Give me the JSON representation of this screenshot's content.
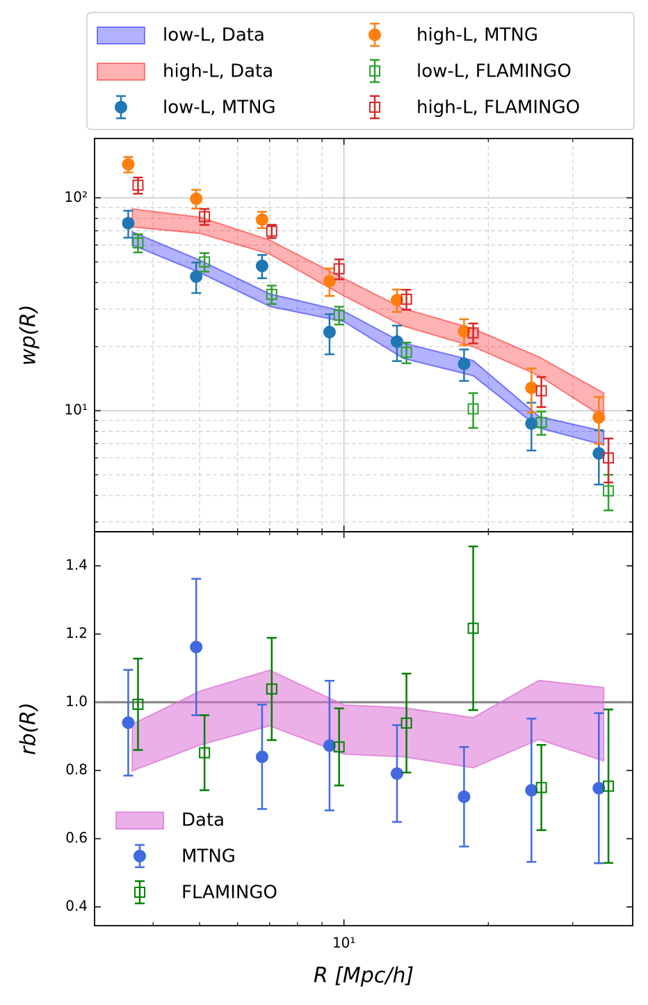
{
  "chart_data": [
    {
      "type": "errorbar",
      "ylabel": "wp(R)",
      "xscale": "log",
      "yscale": "log",
      "xlim": [
        3.02,
        40
      ],
      "ylim": [
        2.7,
        190
      ],
      "xticks": [
        10
      ],
      "xminorticks": [
        4,
        5,
        6,
        7,
        8,
        9,
        20,
        30
      ],
      "yticks": [
        {
          "value": 10,
          "label": "10¹"
        },
        {
          "value": 100,
          "label": "10²"
        }
      ],
      "yminorticks": [
        3,
        4,
        5,
        6,
        7,
        8,
        9,
        20,
        30,
        40,
        50,
        60,
        70,
        80,
        90
      ],
      "grid": true,
      "minor_grid": true,
      "legend": {
        "loc": "upper center outside",
        "ncol": 2,
        "frame": true
      },
      "series": [
        {
          "name": "low-L, Data",
          "kind": "band",
          "color": "#0000ff",
          "alpha": 0.3,
          "x": [
            3.62,
            5.02,
            7.0,
            10.0,
            13.3,
            18.6,
            25.5,
            34.8
          ],
          "lower": [
            60,
            44.4,
            30.9,
            26.2,
            17.6,
            14.6,
            8.3,
            6.9
          ],
          "upper": [
            69.2,
            50.8,
            35.4,
            29.3,
            20.8,
            17.2,
            9.4,
            8.0
          ]
        },
        {
          "name": "high-L, Data",
          "kind": "band",
          "color": "#ff0000",
          "alpha": 0.3,
          "x": [
            3.62,
            5.02,
            7.0,
            10.0,
            13.3,
            18.6,
            25.5,
            34.8
          ],
          "lower": [
            73,
            68,
            54.4,
            34.6,
            25.0,
            20.0,
            14.6,
            9.3
          ],
          "upper": [
            88.7,
            81,
            63.3,
            41.8,
            30.2,
            24.3,
            17.9,
            12.1
          ]
        },
        {
          "name": "low-L, MTNG",
          "kind": "points",
          "marker": "circle",
          "color": "#1f77b4",
          "x": [
            3.55,
            4.92,
            6.75,
            9.33,
            12.9,
            17.8,
            24.6,
            34.0
          ],
          "values": [
            76,
            42.7,
            47.9,
            23.4,
            21.1,
            16.6,
            8.7,
            6.3
          ],
          "errors": [
            11,
            7,
            6,
            5,
            4,
            2.8,
            2.2,
            1.8
          ]
        },
        {
          "name": "high-L, MTNG",
          "kind": "points",
          "marker": "circle",
          "color": "#ff7f0e",
          "x": [
            3.55,
            4.92,
            6.75,
            9.33,
            12.9,
            17.8,
            24.6,
            34.0
          ],
          "values": [
            143.6,
            99,
            79,
            40.6,
            33.1,
            23.6,
            12.8,
            9.3
          ],
          "errors": [
            12,
            10,
            7,
            6,
            4,
            3.3,
            3,
            2.3
          ]
        },
        {
          "name": "low-L, FLAMINGO",
          "kind": "points",
          "marker": "square",
          "color": "#2ca02c",
          "x": [
            3.72,
            5.12,
            7.07,
            9.77,
            13.5,
            18.6,
            25.8,
            35.6
          ],
          "values": [
            61.4,
            50,
            35.2,
            28.1,
            18.8,
            10.2,
            8.8,
            4.2
          ],
          "errors": [
            6,
            5,
            3.5,
            2.7,
            2.1,
            1.9,
            1.1,
            0.8
          ]
        },
        {
          "name": "high-L, FLAMINGO",
          "kind": "points",
          "marker": "square",
          "color": "#d62728",
          "x": [
            3.72,
            5.12,
            7.07,
            9.77,
            13.5,
            18.6,
            25.8,
            35.6
          ],
          "values": [
            114.6,
            81.6,
            69.7,
            46.4,
            33.4,
            23.2,
            12.4,
            6.0
          ],
          "errors": [
            10,
            7,
            5,
            5,
            3.6,
            2.5,
            2,
            1.4
          ]
        }
      ]
    },
    {
      "type": "errorbar",
      "ylabel": "rb(R)",
      "xlabel": "R [Mpc/h]",
      "xscale": "log",
      "yscale": "linear",
      "xlim": [
        3.02,
        40
      ],
      "ylim": [
        0.345,
        1.5
      ],
      "xticks": [
        {
          "value": 10,
          "label": "10¹"
        }
      ],
      "xminorticks": [
        4,
        5,
        6,
        7,
        8,
        9,
        20,
        30
      ],
      "yticks": [
        0.4,
        0.6,
        0.8,
        {
          "value": 1,
          "label": "1.0"
        },
        1.2,
        1.4
      ],
      "grid": false,
      "hline": {
        "value": 1,
        "color": "#808080"
      },
      "legend": {
        "loc": "lower left",
        "ncol": 1,
        "frame": false
      },
      "series": [
        {
          "name": "Data",
          "kind": "band",
          "color": "#da70d6",
          "alpha": 0.55,
          "x": [
            3.62,
            5.02,
            7.0,
            10.0,
            13.3,
            18.6,
            25.5,
            34.8
          ],
          "lower": [
            0.799,
            0.875,
            0.931,
            0.848,
            0.84,
            0.808,
            0.891,
            0.828
          ],
          "upper": [
            0.936,
            1.033,
            1.094,
            0.992,
            0.984,
            0.955,
            1.064,
            1.043
          ]
        },
        {
          "name": "MTNG",
          "kind": "points",
          "marker": "circle",
          "color": "#4169e1",
          "x": [
            3.55,
            4.92,
            6.75,
            9.33,
            12.9,
            17.8,
            24.6,
            34.0
          ],
          "values": [
            0.94,
            1.162,
            0.84,
            0.873,
            0.791,
            0.723,
            0.742,
            0.748
          ],
          "errors": [
            0.155,
            0.2,
            0.153,
            0.19,
            0.142,
            0.146,
            0.21,
            0.22
          ]
        },
        {
          "name": "FLAMINGO",
          "kind": "points",
          "marker": "square",
          "color": "#008000",
          "x": [
            3.72,
            5.12,
            7.07,
            9.77,
            13.5,
            18.6,
            25.8,
            35.6
          ],
          "values": [
            0.994,
            0.852,
            1.039,
            0.869,
            0.939,
            1.217,
            0.75,
            0.754
          ],
          "errors": [
            0.134,
            0.11,
            0.15,
            0.113,
            0.145,
            0.24,
            0.125,
            0.225
          ]
        }
      ]
    }
  ]
}
